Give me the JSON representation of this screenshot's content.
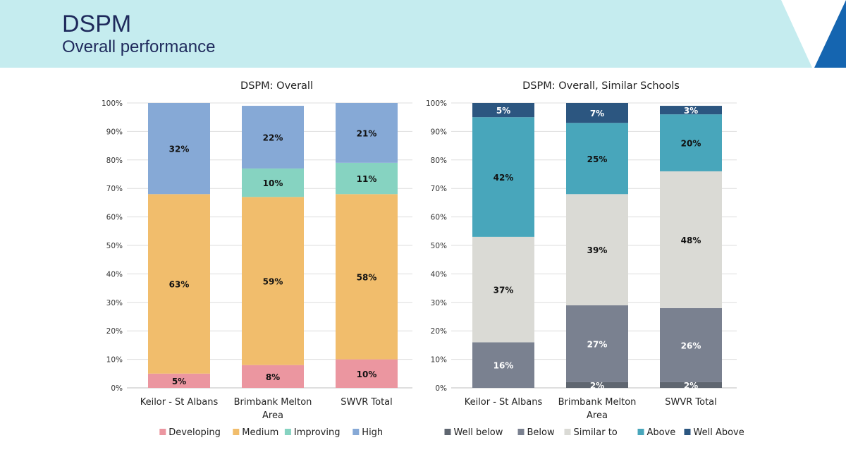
{
  "header": {
    "title": "DSPM",
    "subtitle": "Overall performance",
    "band_color": "#c5ecef",
    "accent_color": "#1565b0"
  },
  "chart_data": [
    {
      "type": "bar",
      "stacked": true,
      "title": "DSPM: Overall",
      "categories": [
        "Keilor - St Albans",
        "Brimbank Melton Area",
        "SWVR Total"
      ],
      "category_label_lines": [
        [
          "Keilor - St Albans"
        ],
        [
          "Brimbank Melton",
          "Area"
        ],
        [
          "SWVR Total"
        ]
      ],
      "ylim": [
        0,
        100
      ],
      "yticks": [
        "0%",
        "10%",
        "20%",
        "30%",
        "40%",
        "50%",
        "60%",
        "70%",
        "80%",
        "90%",
        "100%"
      ],
      "grid": true,
      "legend": "bottom",
      "series": [
        {
          "name": "Developing",
          "color": "#eb96a0",
          "values": [
            5,
            8,
            10
          ],
          "labels": [
            "5%",
            "8%",
            "10%"
          ],
          "label_color": "#111111"
        },
        {
          "name": "Medium",
          "color": "#f1bd6c",
          "values": [
            63,
            59,
            58
          ],
          "labels": [
            "63%",
            "59%",
            "58%"
          ],
          "label_color": "#111111"
        },
        {
          "name": "Improving",
          "color": "#86d3c1",
          "values": [
            0,
            10,
            11
          ],
          "labels": [
            "",
            "10%",
            "11%"
          ],
          "label_color": "#111111"
        },
        {
          "name": "High",
          "color": "#86a9d6",
          "values": [
            32,
            22,
            21
          ],
          "labels": [
            "32%",
            "22%",
            "21%"
          ],
          "label_color": "#111111"
        }
      ]
    },
    {
      "type": "bar",
      "stacked": true,
      "title": "DSPM: Overall, Similar Schools",
      "categories": [
        "Keilor - St Albans",
        "Brimbank Melton Area",
        "SWVR Total"
      ],
      "category_label_lines": [
        [
          "Keilor - St Albans"
        ],
        [
          "Brimbank Melton",
          "Area"
        ],
        [
          "SWVR Total"
        ]
      ],
      "ylim": [
        0,
        100
      ],
      "yticks": [
        "0%",
        "10%",
        "20%",
        "30%",
        "40%",
        "50%",
        "60%",
        "70%",
        "80%",
        "90%",
        "100%"
      ],
      "grid": true,
      "legend": "bottom",
      "series": [
        {
          "name": "Well below",
          "color": "#5f6670",
          "values": [
            0,
            2,
            2
          ],
          "labels": [
            "",
            "2%",
            "2%"
          ],
          "label_color": "#ffffff"
        },
        {
          "name": "Below",
          "color": "#7a8190",
          "values": [
            16,
            27,
            26
          ],
          "labels": [
            "16%",
            "27%",
            "26%"
          ],
          "label_color": "#ffffff"
        },
        {
          "name": "Similar to",
          "color": "#dadad5",
          "values": [
            37,
            39,
            48
          ],
          "labels": [
            "37%",
            "39%",
            "48%"
          ],
          "label_color": "#111111"
        },
        {
          "name": "Above",
          "color": "#48a6bb",
          "values": [
            42,
            25,
            20
          ],
          "labels": [
            "42%",
            "25%",
            "20%"
          ],
          "label_color": "#111111"
        },
        {
          "name": "Well Above",
          "color": "#2c5680",
          "values": [
            5,
            7,
            3
          ],
          "labels": [
            "5%",
            "7%",
            "3%"
          ],
          "label_color": "#ffffff"
        }
      ]
    }
  ]
}
